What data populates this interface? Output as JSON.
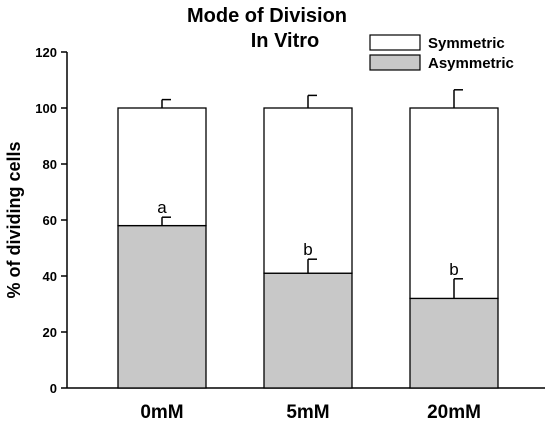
{
  "chart_data": {
    "type": "bar",
    "stacked": true,
    "title": [
      "Mode of Division",
      "In Vitro"
    ],
    "xlabel": "",
    "ylabel": "% of dividing cells",
    "ylim": [
      0,
      120
    ],
    "yticks": [
      0,
      20,
      40,
      60,
      80,
      100,
      120
    ],
    "ytick_labels": [
      "0",
      "20",
      "40",
      "60",
      "80",
      "100",
      "120"
    ],
    "grid": false,
    "legend_position": "top-right",
    "categories": [
      "0mM",
      "5mM",
      "20mM"
    ],
    "series": [
      {
        "name": "Asymmetric",
        "color": "#c8c8c8",
        "values": [
          58,
          41,
          32
        ],
        "errors": [
          3,
          5,
          7
        ],
        "annotations": [
          "a",
          "b",
          "b"
        ]
      },
      {
        "name": "Symmetric",
        "color": "#ffffff",
        "values": [
          42,
          59,
          68
        ],
        "errors": [
          3,
          4.5,
          6.5
        ]
      }
    ]
  }
}
